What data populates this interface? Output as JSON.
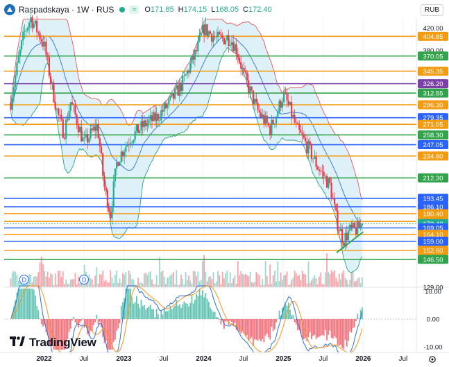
{
  "header": {
    "symbol": "Raspadskaya · 1W · RUS",
    "tilde": "≈",
    "open_label": "O",
    "open": "171.85",
    "high_label": "H",
    "high": "174.15",
    "low_label": "L",
    "low": "168.05",
    "close_label": "C",
    "close": "172.40"
  },
  "currency": "RUB",
  "brand": "TradingView",
  "colors": {
    "up": "#22ab94",
    "down": "#f23645",
    "orange": "#f39c12",
    "green": "#31a34a",
    "blue": "#2962ff",
    "purple": "#7b3fa6",
    "bb_fill": "#d3ecf5",
    "bb_upper": "#e35757",
    "bb_lower": "#26a07a",
    "bb_mid": "#2d6fd6",
    "macd_line": "#2d6fd6",
    "signal_line": "#f7931a"
  },
  "chart_data": [
    {
      "type": "candlestick",
      "title": "Raspadskaya · 1W · RUS",
      "y_scale": "log",
      "ylim": [
        129,
        440
      ],
      "x_range": [
        "2021-07",
        "2026-09"
      ],
      "y_ticks": [
        420.0,
        380.0,
        129.0
      ],
      "x_ticks": [
        "2022",
        "Jul",
        "2023",
        "Jul",
        "2024",
        "Jul",
        "2025",
        "Jul",
        "2026",
        "Jul"
      ],
      "last_price": 172.4,
      "ohlc_last": {
        "open": 171.85,
        "high": 174.15,
        "low": 168.05,
        "close": 172.4
      },
      "price_trend": [
        {
          "x": "2021-08",
          "y": 300
        },
        {
          "x": "2021-10",
          "y": 410
        },
        {
          "x": "2021-11",
          "y": 440
        },
        {
          "x": "2022-01",
          "y": 390
        },
        {
          "x": "2022-02",
          "y": 330
        },
        {
          "x": "2022-03",
          "y": 285
        },
        {
          "x": "2022-04",
          "y": 260
        },
        {
          "x": "2022-05",
          "y": 300
        },
        {
          "x": "2022-07",
          "y": 248
        },
        {
          "x": "2022-09",
          "y": 270
        },
        {
          "x": "2022-10",
          "y": 205
        },
        {
          "x": "2022-11",
          "y": 180
        },
        {
          "x": "2022-12",
          "y": 230
        },
        {
          "x": "2023-02",
          "y": 255
        },
        {
          "x": "2023-04",
          "y": 270
        },
        {
          "x": "2023-06",
          "y": 280
        },
        {
          "x": "2023-08",
          "y": 300
        },
        {
          "x": "2023-10",
          "y": 330
        },
        {
          "x": "2023-12",
          "y": 380
        },
        {
          "x": "2024-01",
          "y": 420
        },
        {
          "x": "2024-03",
          "y": 400
        },
        {
          "x": "2024-05",
          "y": 402
        },
        {
          "x": "2024-06",
          "y": 380
        },
        {
          "x": "2024-07",
          "y": 340
        },
        {
          "x": "2024-09",
          "y": 290
        },
        {
          "x": "2024-11",
          "y": 265
        },
        {
          "x": "2024-12",
          "y": 285
        },
        {
          "x": "2025-01",
          "y": 310
        },
        {
          "x": "2025-02",
          "y": 290
        },
        {
          "x": "2025-03",
          "y": 265
        },
        {
          "x": "2025-05",
          "y": 240
        },
        {
          "x": "2025-06",
          "y": 225
        },
        {
          "x": "2025-08",
          "y": 205
        },
        {
          "x": "2025-09",
          "y": 175
        },
        {
          "x": "2025-10",
          "y": 160
        },
        {
          "x": "2025-11",
          "y": 167
        },
        {
          "x": "2025-12",
          "y": 168
        },
        {
          "x": "2026-01",
          "y": 172
        }
      ],
      "horizontal_levels": [
        {
          "value": 404.85,
          "color": "orange"
        },
        {
          "value": 370.05,
          "color": "green"
        },
        {
          "value": 345.35,
          "color": "orange"
        },
        {
          "value": 326.2,
          "color": "purple"
        },
        {
          "value": 312.55,
          "color": "green"
        },
        {
          "value": 296.3,
          "color": "orange"
        },
        {
          "value": 279.35,
          "color": "blue"
        },
        {
          "value": 271.05,
          "color": "orange"
        },
        {
          "value": 258.3,
          "color": "green"
        },
        {
          "value": 247.05,
          "color": "blue"
        },
        {
          "value": 234.6,
          "color": "orange"
        },
        {
          "value": 212.3,
          "color": "green"
        },
        {
          "value": 193.45,
          "color": "blue"
        },
        {
          "value": 186.1,
          "color": "blue"
        },
        {
          "value": 180.4,
          "color": "orange"
        },
        {
          "value": 174.1,
          "color": "orange"
        },
        {
          "value": 172.4,
          "color": "up"
        },
        {
          "value": 169.05,
          "color": "blue"
        },
        {
          "value": 164.1,
          "color": "orange"
        },
        {
          "value": 159.0,
          "color": "blue"
        },
        {
          "value": 152.6,
          "color": "orange"
        },
        {
          "value": 146.5,
          "color": "green"
        }
      ],
      "indicators": [
        "Bollinger Bands",
        "Volume",
        "MACD"
      ],
      "event_markers": [
        "D",
        "D"
      ]
    },
    {
      "type": "bar",
      "title": "MACD",
      "y_ticks": [
        10.0,
        0.0,
        -10.0
      ],
      "ylim": [
        -12,
        12
      ]
    }
  ]
}
